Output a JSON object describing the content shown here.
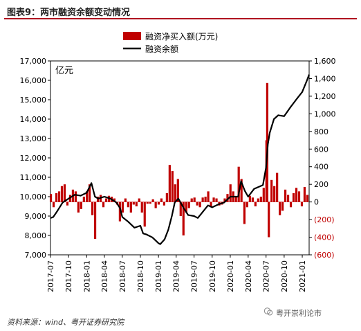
{
  "header": {
    "title": "图表9：两市融资余额变动情况"
  },
  "footer": {
    "source": "资料来源：wind、粤开证券研究院"
  },
  "watermark": {
    "text": "粤开崇利论市"
  },
  "chart_data": {
    "type": "bar+line",
    "unit_label": "亿元",
    "legend_position": "top-center",
    "left_axis": {
      "min": 7000,
      "max": 17000,
      "ticks": [
        "7,000",
        "8,000",
        "9,000",
        "10,000",
        "11,000",
        "12,000",
        "13,000",
        "14,000",
        "15,000",
        "16,000",
        "17,000"
      ]
    },
    "right_axis": {
      "min": -600,
      "max": 1600,
      "ticks": [
        "(600)",
        "(400)",
        "(200)",
        "0",
        "200",
        "400",
        "600",
        "800",
        "1,000",
        "1,200",
        "1,400",
        "1,600"
      ]
    },
    "x_ticks": [
      "2017-07",
      "2017-10",
      "2018-01",
      "2018-04",
      "2018-07",
      "2018-10",
      "2019-01",
      "2019-04",
      "2019-07",
      "2019-10",
      "2020-01",
      "2020-04",
      "2020-07",
      "2020-10",
      "2021-01"
    ],
    "x_range": [
      "2017-07-01",
      "2021-02-05"
    ],
    "colors": {
      "bar": "#c00000",
      "line": "#000000",
      "negative_tick": "#c00000"
    },
    "series": [
      {
        "name": "融资净买入额(万元)",
        "axis": "right",
        "kind": "bar",
        "points": [
          [
            "2017-07-03",
            90
          ],
          [
            "2017-07-17",
            -60
          ],
          [
            "2017-07-31",
            100
          ],
          [
            "2017-08-14",
            120
          ],
          [
            "2017-08-28",
            180
          ],
          [
            "2017-09-11",
            200
          ],
          [
            "2017-09-25",
            -40
          ],
          [
            "2017-10-09",
            80
          ],
          [
            "2017-10-23",
            140
          ],
          [
            "2017-11-06",
            120
          ],
          [
            "2017-11-20",
            -120
          ],
          [
            "2017-12-04",
            -80
          ],
          [
            "2017-12-18",
            60
          ],
          [
            "2018-01-02",
            120
          ],
          [
            "2018-01-16",
            200
          ],
          [
            "2018-01-30",
            -150
          ],
          [
            "2018-02-13",
            -420
          ],
          [
            "2018-02-27",
            60
          ],
          [
            "2018-03-13",
            80
          ],
          [
            "2018-03-27",
            -60
          ],
          [
            "2018-04-10",
            40
          ],
          [
            "2018-04-24",
            70
          ],
          [
            "2018-05-08",
            60
          ],
          [
            "2018-05-22",
            40
          ],
          [
            "2018-06-05",
            -30
          ],
          [
            "2018-06-19",
            -220
          ],
          [
            "2018-07-03",
            -120
          ],
          [
            "2018-07-17",
            40
          ],
          [
            "2018-07-31",
            -60
          ],
          [
            "2018-08-14",
            -120
          ],
          [
            "2018-08-28",
            -30
          ],
          [
            "2018-09-11",
            -50
          ],
          [
            "2018-09-25",
            40
          ],
          [
            "2018-10-09",
            -120
          ],
          [
            "2018-10-23",
            -280
          ],
          [
            "2018-11-06",
            -20
          ],
          [
            "2018-11-20",
            -20
          ],
          [
            "2018-12-04",
            30
          ],
          [
            "2018-12-18",
            -70
          ],
          [
            "2019-01-02",
            -30
          ],
          [
            "2019-01-16",
            40
          ],
          [
            "2019-01-30",
            -40
          ],
          [
            "2019-02-13",
            100
          ],
          [
            "2019-02-27",
            420
          ],
          [
            "2019-03-13",
            350
          ],
          [
            "2019-03-27",
            200
          ],
          [
            "2019-04-10",
            260
          ],
          [
            "2019-04-24",
            -160
          ],
          [
            "2019-05-08",
            -380
          ],
          [
            "2019-05-22",
            -120
          ],
          [
            "2019-06-05",
            -70
          ],
          [
            "2019-06-19",
            40
          ],
          [
            "2019-07-03",
            50
          ],
          [
            "2019-07-17",
            -40
          ],
          [
            "2019-07-31",
            -60
          ],
          [
            "2019-08-14",
            50
          ],
          [
            "2019-08-28",
            60
          ],
          [
            "2019-09-11",
            120
          ],
          [
            "2019-09-25",
            -60
          ],
          [
            "2019-10-09",
            50
          ],
          [
            "2019-10-23",
            40
          ],
          [
            "2019-11-06",
            -40
          ],
          [
            "2019-11-20",
            -30
          ],
          [
            "2019-12-04",
            40
          ],
          [
            "2019-12-18",
            90
          ],
          [
            "2020-01-02",
            200
          ],
          [
            "2020-01-16",
            120
          ],
          [
            "2020-01-30",
            60
          ],
          [
            "2020-02-13",
            400
          ],
          [
            "2020-02-27",
            260
          ],
          [
            "2020-03-13",
            -250
          ],
          [
            "2020-03-27",
            -60
          ],
          [
            "2020-04-10",
            70
          ],
          [
            "2020-04-24",
            50
          ],
          [
            "2020-05-08",
            -50
          ],
          [
            "2020-05-22",
            40
          ],
          [
            "2020-06-05",
            60
          ],
          [
            "2020-06-19",
            160
          ],
          [
            "2020-07-03",
            700
          ],
          [
            "2020-07-07",
            1350
          ],
          [
            "2020-07-15",
            -400
          ],
          [
            "2020-07-29",
            250
          ],
          [
            "2020-08-12",
            180
          ],
          [
            "2020-08-26",
            330
          ],
          [
            "2020-09-09",
            -150
          ],
          [
            "2020-09-23",
            -100
          ],
          [
            "2020-10-07",
            140
          ],
          [
            "2020-10-21",
            80
          ],
          [
            "2020-11-04",
            -60
          ],
          [
            "2020-11-18",
            100
          ],
          [
            "2020-12-02",
            160
          ],
          [
            "2020-12-16",
            120
          ],
          [
            "2020-12-30",
            -50
          ],
          [
            "2021-01-13",
            170
          ],
          [
            "2021-01-27",
            80
          ]
        ]
      },
      {
        "name": "融资余额",
        "axis": "left",
        "kind": "line",
        "points": [
          [
            "2017-07-01",
            8900
          ],
          [
            "2017-07-15",
            8950
          ],
          [
            "2017-08-01",
            9200
          ],
          [
            "2017-09-01",
            9700
          ],
          [
            "2017-10-01",
            9900
          ],
          [
            "2017-11-01",
            10100
          ],
          [
            "2017-12-01",
            10050
          ],
          [
            "2018-01-01",
            10200
          ],
          [
            "2018-01-25",
            10700
          ],
          [
            "2018-02-12",
            10000
          ],
          [
            "2018-03-01",
            9900
          ],
          [
            "2018-04-01",
            10000
          ],
          [
            "2018-05-01",
            9900
          ],
          [
            "2018-06-01",
            9700
          ],
          [
            "2018-06-20",
            9400
          ],
          [
            "2018-07-01",
            8950
          ],
          [
            "2018-08-01",
            8700
          ],
          [
            "2018-09-01",
            8400
          ],
          [
            "2018-10-01",
            8500
          ],
          [
            "2018-10-15",
            8100
          ],
          [
            "2018-11-01",
            8050
          ],
          [
            "2018-12-01",
            7900
          ],
          [
            "2019-01-01",
            7600
          ],
          [
            "2019-01-10",
            7550
          ],
          [
            "2019-02-01",
            7800
          ],
          [
            "2019-02-20",
            8300
          ],
          [
            "2019-03-10",
            9000
          ],
          [
            "2019-03-25",
            9700
          ],
          [
            "2019-04-12",
            9900
          ],
          [
            "2019-05-10",
            9400
          ],
          [
            "2019-06-01",
            9050
          ],
          [
            "2019-07-01",
            9000
          ],
          [
            "2019-07-20",
            8900
          ],
          [
            "2019-08-05",
            9100
          ],
          [
            "2019-09-10",
            9550
          ],
          [
            "2019-10-01",
            9450
          ],
          [
            "2019-11-01",
            9600
          ],
          [
            "2019-12-01",
            9700
          ],
          [
            "2020-01-01",
            10000
          ],
          [
            "2020-02-10",
            10000
          ],
          [
            "2020-02-25",
            10800
          ],
          [
            "2020-03-15",
            10300
          ],
          [
            "2020-04-01",
            10000
          ],
          [
            "2020-05-01",
            10400
          ],
          [
            "2020-06-15",
            10600
          ],
          [
            "2020-07-01",
            11500
          ],
          [
            "2020-07-10",
            12700
          ],
          [
            "2020-07-20",
            13300
          ],
          [
            "2020-08-10",
            14000
          ],
          [
            "2020-09-01",
            14200
          ],
          [
            "2020-10-01",
            14150
          ],
          [
            "2020-11-01",
            14600
          ],
          [
            "2020-12-01",
            15000
          ],
          [
            "2021-01-01",
            15400
          ],
          [
            "2021-01-25",
            16000
          ],
          [
            "2021-02-05",
            16300
          ]
        ]
      }
    ]
  }
}
